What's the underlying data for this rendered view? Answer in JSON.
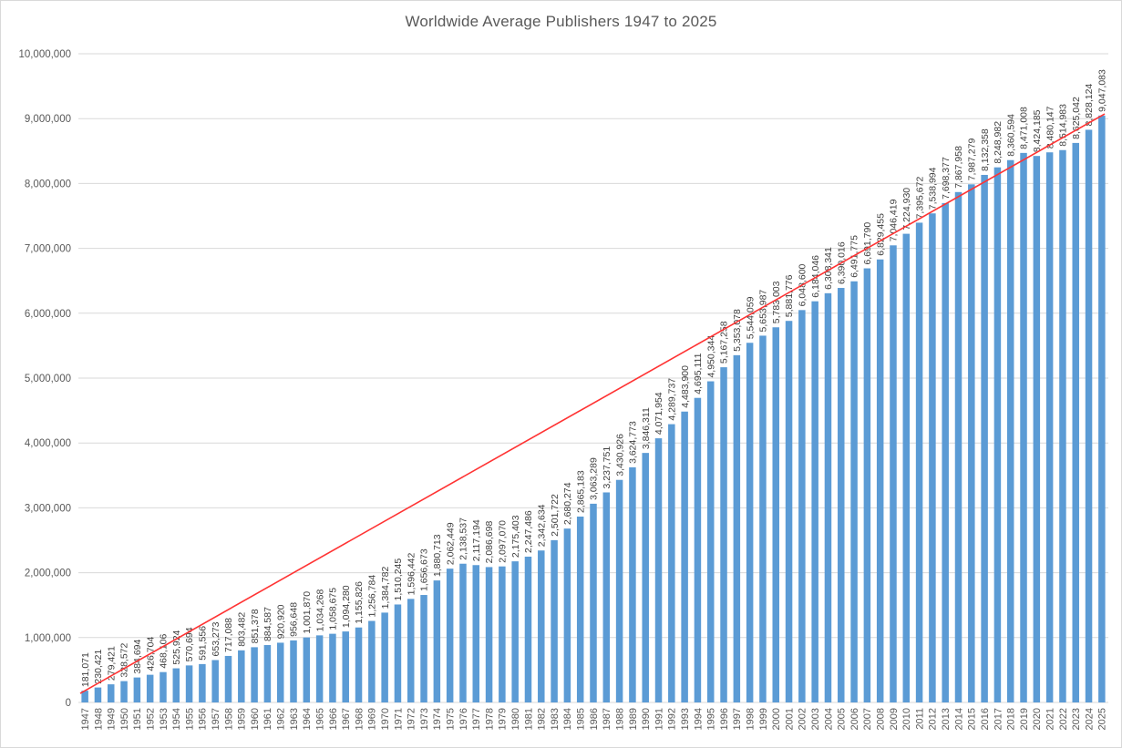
{
  "chart_data": {
    "type": "bar",
    "title": "Worldwide Average Publishers 1947 to 2025",
    "xlabel": "",
    "ylabel": "",
    "ylim": [
      0,
      10000000
    ],
    "y_tick_step": 1000000,
    "y_tick_labels": [
      "0",
      "1,000,000",
      "2,000,000",
      "3,000,000",
      "4,000,000",
      "5,000,000",
      "6,000,000",
      "7,000,000",
      "8,000,000",
      "9,000,000",
      "10,000,000"
    ],
    "grid": true,
    "legend": "none",
    "bar_color": "#5B9BD5",
    "gridline_color": "#D9D9D9",
    "axis_label_color": "#595959",
    "data_label_color": "#404040",
    "title_color": "#595959",
    "trendline": {
      "type": "linear",
      "color": "#FF3333",
      "start_value": 181071,
      "end_value": 9047083
    },
    "categories": [
      "1947",
      "1948",
      "1949",
      "1950",
      "1951",
      "1952",
      "1953",
      "1954",
      "1955",
      "1956",
      "1957",
      "1958",
      "1959",
      "1960",
      "1961",
      "1962",
      "1963",
      "1964",
      "1965",
      "1966",
      "1967",
      "1968",
      "1969",
      "1970",
      "1971",
      "1972",
      "1973",
      "1974",
      "1975",
      "1976",
      "1977",
      "1978",
      "1979",
      "1980",
      "1981",
      "1982",
      "1983",
      "1984",
      "1985",
      "1986",
      "1987",
      "1988",
      "1989",
      "1990",
      "1991",
      "1992",
      "1993",
      "1994",
      "1995",
      "1996",
      "1997",
      "1998",
      "1999",
      "2000",
      "2001",
      "2002",
      "2003",
      "2004",
      "2005",
      "2006",
      "2007",
      "2008",
      "2009",
      "2010",
      "2011",
      "2012",
      "2013",
      "2014",
      "2015",
      "2016",
      "2017",
      "2018",
      "2019",
      "2020",
      "2021",
      "2022",
      "2023",
      "2024",
      "2025"
    ],
    "values": [
      181071,
      230421,
      279421,
      328572,
      384694,
      426704,
      468106,
      525924,
      570694,
      591556,
      653273,
      717088,
      803482,
      851378,
      884587,
      920920,
      956648,
      1001870,
      1034268,
      1058675,
      1094280,
      1155826,
      1256784,
      1384782,
      1510245,
      1596442,
      1656673,
      1880713,
      2062449,
      2138537,
      2117194,
      2086698,
      2097070,
      2175403,
      2247486,
      2342634,
      2501722,
      2680274,
      2865183,
      3063289,
      3237751,
      3430926,
      3624773,
      3846311,
      4071954,
      4289737,
      4483900,
      4695111,
      4950344,
      5167258,
      5353078,
      5544059,
      5653987,
      5783003,
      5881776,
      6048600,
      6184046,
      6308341,
      6390016,
      6491775,
      6691790,
      6829455,
      7046419,
      7224930,
      7395672,
      7538994,
      7698377,
      7867958,
      7987279,
      8132358,
      8248982,
      8360594,
      8471008,
      8424185,
      8480147,
      8514983,
      8625042,
      8828124,
      9047083
    ]
  }
}
